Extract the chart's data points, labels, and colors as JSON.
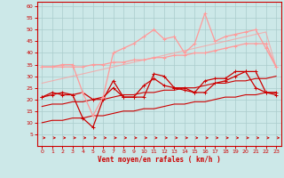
{
  "background_color": "#cce8e8",
  "grid_color": "#aacccc",
  "xlabel": "Vent moyen/en rafales ( km/h )",
  "xlabel_color": "#cc0000",
  "tick_color": "#cc0000",
  "xlim": [
    -0.5,
    23.5
  ],
  "ylim": [
    0,
    62
  ],
  "yticks": [
    5,
    10,
    15,
    20,
    25,
    30,
    35,
    40,
    45,
    50,
    55,
    60
  ],
  "xticks": [
    0,
    1,
    2,
    3,
    4,
    5,
    6,
    7,
    8,
    9,
    10,
    11,
    12,
    13,
    14,
    15,
    16,
    17,
    18,
    19,
    20,
    21,
    22,
    23
  ],
  "x": [
    0,
    1,
    2,
    3,
    4,
    5,
    6,
    7,
    8,
    9,
    10,
    11,
    12,
    13,
    14,
    15,
    16,
    17,
    18,
    19,
    20,
    21,
    22,
    23
  ],
  "lines": [
    {
      "y": [
        21,
        23,
        22,
        22,
        23,
        20,
        21,
        25,
        21,
        21,
        26,
        29,
        26,
        25,
        24,
        23,
        28,
        29,
        29,
        32,
        32,
        25,
        23,
        23
      ],
      "color": "#cc0000",
      "alpha": 1.0,
      "lw": 0.9,
      "marker": "+",
      "ms": 3.0,
      "zorder": 3
    },
    {
      "y": [
        10,
        11,
        11,
        12,
        12,
        13,
        13,
        14,
        15,
        15,
        16,
        16,
        17,
        18,
        18,
        19,
        19,
        20,
        21,
        21,
        22,
        22,
        23,
        23
      ],
      "color": "#cc0000",
      "alpha": 1.0,
      "lw": 0.8,
      "marker": null,
      "ms": 0,
      "zorder": 2
    },
    {
      "y": [
        17,
        18,
        18,
        19,
        19,
        20,
        20,
        21,
        22,
        22,
        23,
        23,
        24,
        24,
        25,
        25,
        26,
        27,
        27,
        28,
        28,
        29,
        29,
        30
      ],
      "color": "#cc0000",
      "alpha": 1.0,
      "lw": 0.8,
      "marker": null,
      "ms": 0,
      "zorder": 2
    },
    {
      "y": [
        21,
        22,
        23,
        22,
        12,
        8,
        20,
        28,
        21,
        21,
        21,
        31,
        30,
        25,
        25,
        23,
        23,
        27,
        28,
        30,
        32,
        32,
        23,
        22
      ],
      "color": "#cc0000",
      "alpha": 1.0,
      "lw": 0.9,
      "marker": "+",
      "ms": 3.0,
      "zorder": 3
    },
    {
      "y": [
        34,
        34,
        34,
        34,
        34,
        35,
        35,
        36,
        36,
        37,
        37,
        38,
        38,
        39,
        39,
        40,
        40,
        41,
        42,
        43,
        44,
        44,
        44,
        34
      ],
      "color": "#ff9999",
      "alpha": 1.0,
      "lw": 0.9,
      "marker": "+",
      "ms": 3.0,
      "zorder": 2
    },
    {
      "y": [
        27,
        28,
        29,
        30,
        31,
        32,
        33,
        34,
        35,
        36,
        37,
        38,
        39,
        40,
        41,
        42,
        43,
        44,
        45,
        46,
        47,
        48,
        49,
        34
      ],
      "color": "#ff9999",
      "alpha": 0.7,
      "lw": 0.8,
      "marker": null,
      "ms": 0,
      "zorder": 2
    },
    {
      "y": [
        34,
        34,
        35,
        35,
        23,
        13,
        21,
        40,
        42,
        44,
        47,
        50,
        46,
        47,
        40,
        44,
        57,
        45,
        47,
        48,
        49,
        50,
        42,
        34
      ],
      "color": "#ff9999",
      "alpha": 1.0,
      "lw": 0.9,
      "marker": "+",
      "ms": 3.0,
      "zorder": 3
    }
  ],
  "arrows": {
    "y": 3.5,
    "color": "#cc0000",
    "lw": 0.6
  }
}
